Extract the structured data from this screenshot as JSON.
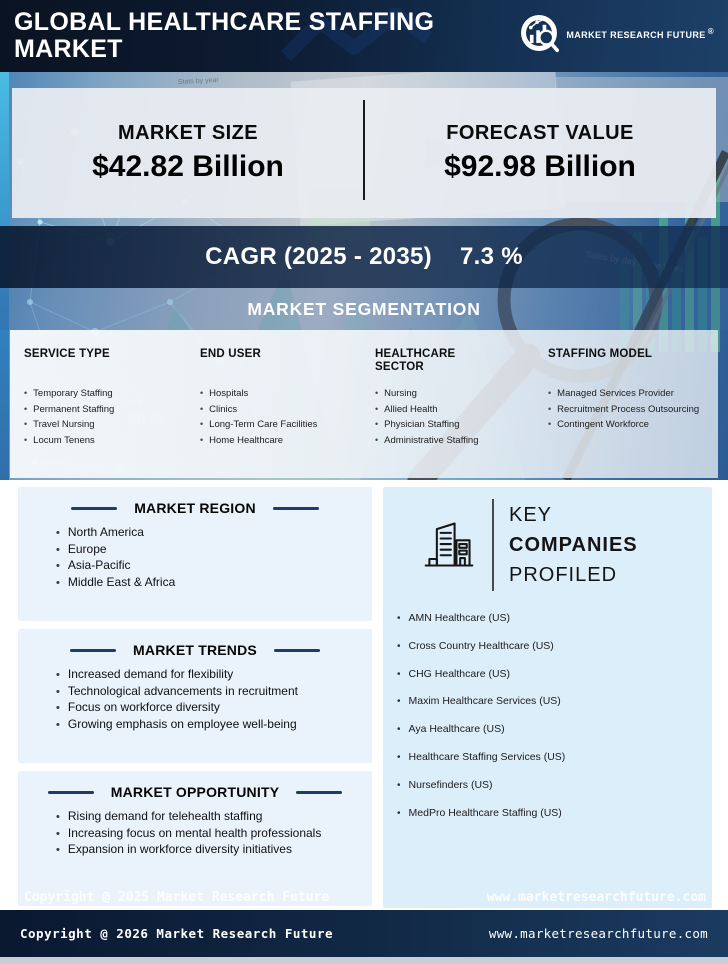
{
  "header": {
    "title_line1": "GLOBAL HEALTHCARE STAFFING",
    "title_line2": "MARKET",
    "logo_text": "MARKET RESEARCH FUTURE",
    "logo_reg": "®"
  },
  "stats": {
    "market_size_label": "MARKET SIZE",
    "market_size_value": "$42.82 Billion",
    "forecast_label": "FORECAST VALUE",
    "forecast_value": "$92.98 Billion",
    "cagr_label": "CAGR (2025 - 2035)",
    "cagr_value": "7.3 %"
  },
  "segmentation": {
    "title": "MARKET SEGMENTATION",
    "columns": [
      {
        "title": "SERVICE TYPE",
        "items": [
          "Temporary Staffing",
          "Permanent Staffing",
          "Travel Nursing",
          "Locum Tenens"
        ]
      },
      {
        "title": "END USER",
        "items": [
          "Hospitals",
          "Clinics",
          "Long-Term Care Facilities",
          "Home Healthcare"
        ]
      },
      {
        "title": "HEALTHCARE SECTOR",
        "items": [
          "Nursing",
          "Allied Health",
          "Physician Staffing",
          "Administrative Staffing"
        ]
      },
      {
        "title": "STAFFING MODEL",
        "items": [
          "Managed Services Provider",
          "Recruitment Process Outsourcing",
          "Contingent Workforce"
        ]
      }
    ]
  },
  "region": {
    "title": "MARKET REGION",
    "items": [
      "North America",
      "Europe",
      "Asia-Pacific",
      "Middle East & Africa"
    ]
  },
  "trends": {
    "title": "MARKET TRENDS",
    "items": [
      "Increased demand for flexibility",
      "Technological advancements in recruitment",
      "Focus on workforce diversity",
      "Growing emphasis on employee well-being"
    ]
  },
  "opportunity": {
    "title": "MARKET OPPORTUNITY",
    "items": [
      "Rising demand for telehealth staffing",
      "Increasing focus on mental health professionals",
      "Expansion in workforce diversity initiatives"
    ]
  },
  "companies": {
    "title_line1": "KEY",
    "title_line2": "COMPANIES",
    "title_line3": "PROFILED",
    "items": [
      "AMN Healthcare (US)",
      "Cross Country Healthcare (US)",
      "CHG Healthcare (US)",
      "Maxim Healthcare Services (US)",
      "Aya Healthcare (US)",
      "Healthcare Staffing Services (US)",
      "Nursefinders (US)",
      "MedPro Healthcare Staffing (US)"
    ]
  },
  "watermark": {
    "copyright": "Copyright @ 2025 Market Research Future",
    "website": "www.marketresearchfuture.com"
  },
  "footer": {
    "copyright": "Copyright @ 2026 Market Research Future",
    "website": "www.marketresearchfuture.com"
  },
  "colors": {
    "brand_navy": "#0d2240",
    "accent_dash": "#1e3c6b",
    "card_bg_light": "#eaf3fc",
    "card_bg_companies": "#ddeefb"
  }
}
